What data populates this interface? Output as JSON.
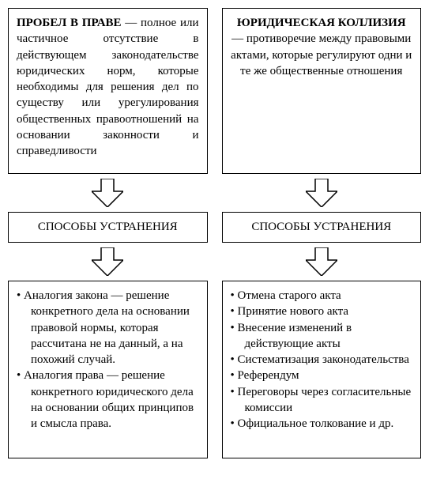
{
  "diagram": {
    "type": "flowchart",
    "background_color": "#ffffff",
    "border_color": "#000000",
    "text_color": "#000000",
    "font_family": "serif",
    "fontsize_body": 15,
    "arrow": {
      "fill": "#ffffff",
      "stroke": "#000000",
      "stroke_width": 1.5,
      "width": 40,
      "height": 36
    },
    "columns": [
      {
        "id": "left",
        "title": "ПРОБЕЛ В ПРАВЕ",
        "definition": " — полное или частичное отсутствие в действующем законодательстве юридических норм, которые необходимы для решения дел по существу или урегулирования общественных правоотношений на основании законности и справедливости",
        "middle_label": "СПОСОБЫ УСТРАНЕНИЯ",
        "items": [
          "Аналогия закона — решение конкретного дела на основании правовой нормы, которая рассчитана не на данный, а на похожий случай.",
          "Аналогия права — решение конкретного юридического дела на основании общих принципов и смысла права."
        ]
      },
      {
        "id": "right",
        "title": "ЮРИДИЧЕСКАЯ КОЛЛИЗИЯ",
        "definition": " — противоречие между правовыми актами, которые регулируют одни и те же общественные отношения",
        "middle_label": "СПОСОБЫ УСТРАНЕНИЯ",
        "items": [
          "Отмена старого акта",
          "Принятие нового акта",
          "Внесение изменений в действующие акты",
          "Систематизация законодательства",
          "Референдум",
          "Переговоры через согласительные комиссии",
          "Официальное толкование и др."
        ]
      }
    ]
  }
}
